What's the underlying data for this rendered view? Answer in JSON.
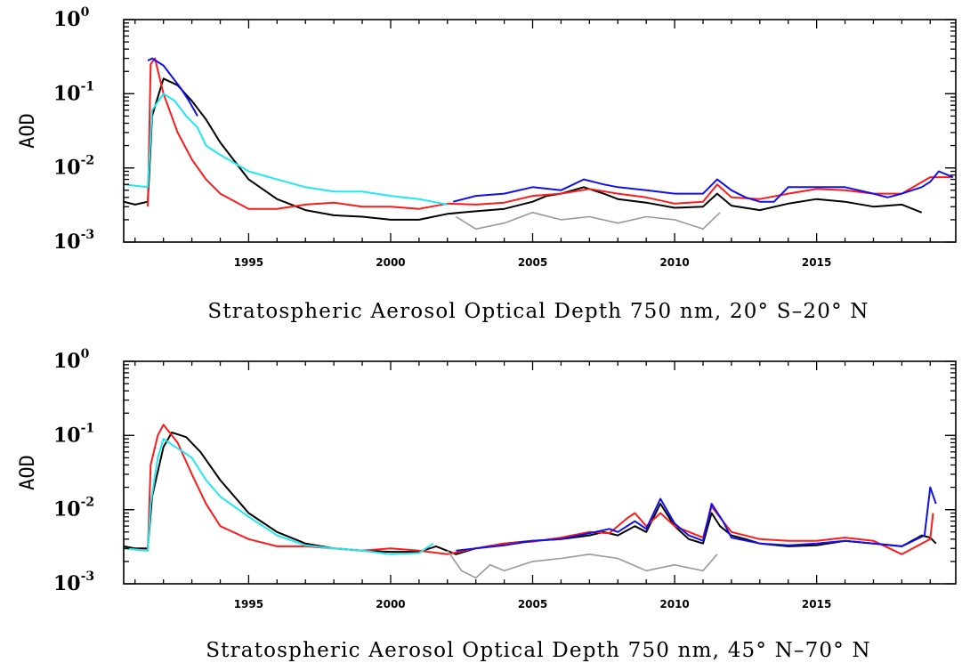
{
  "colors": {
    "black": "#000000",
    "red": "#ff1a1a",
    "cyan": "#1ee8f0",
    "blue": "#1010ee",
    "grey": "#999999"
  },
  "chart_data": [
    {
      "type": "line",
      "title": "Stratospheric Aerosol Optical Depth 750 nm, 20° S–20° N",
      "ylabel": "AOD",
      "xlabel": "",
      "yscale": "log",
      "ylim": [
        0.001,
        1
      ],
      "xlim": [
        1990.6,
        2019.9
      ],
      "xticks": [
        "1995",
        "2000",
        "2005",
        "2010",
        "2015"
      ],
      "yticks": [
        {
          "base": "10",
          "exp": "0"
        },
        {
          "base": "10",
          "exp": "-1"
        },
        {
          "base": "10",
          "exp": "-2"
        },
        {
          "base": "10",
          "exp": "-3"
        }
      ],
      "grid": false,
      "series": [
        {
          "color": "black",
          "x": [
            1990.6,
            1991.0,
            1991.45,
            1991.6,
            1992.0,
            1992.5,
            1993.0,
            1993.5,
            1994.0,
            1995.0,
            1996.0,
            1997.0,
            1998.0,
            1999.0,
            2000.0,
            2001.0,
            2002.0,
            2002.5,
            2003.0,
            2004.0,
            2005.0,
            2005.5,
            2006.0,
            2006.8,
            2007.5,
            2008.0,
            2009.0,
            2010.0,
            2011.0,
            2011.5,
            2012.0,
            2013.0,
            2014.0,
            2015.0,
            2016.0,
            2017.0,
            2018.0,
            2018.7
          ],
          "y": [
            0.0035,
            0.0032,
            0.0035,
            0.05,
            0.16,
            0.13,
            0.08,
            0.045,
            0.022,
            0.007,
            0.0038,
            0.0027,
            0.0023,
            0.0022,
            0.002,
            0.002,
            0.0024,
            0.0025,
            0.0026,
            0.0028,
            0.0035,
            0.0042,
            0.0045,
            0.0055,
            0.0045,
            0.0038,
            0.0034,
            0.0029,
            0.003,
            0.0045,
            0.0031,
            0.0027,
            0.0033,
            0.0038,
            0.0035,
            0.003,
            0.0032,
            0.0025
          ]
        },
        {
          "color": "red",
          "x": [
            1991.45,
            1991.55,
            1991.7,
            1992.0,
            1992.5,
            1993.0,
            1993.5,
            1994.0,
            1995.0,
            1996.0,
            1997.0,
            1998.0,
            1999.0,
            2000.0,
            2001.0,
            2002.0,
            2003.0,
            2004.0,
            2005.0,
            2006.0,
            2007.0,
            2008.0,
            2009.0,
            2010.0,
            2011.0,
            2011.5,
            2012.0,
            2013.0,
            2014.0,
            2015.0,
            2016.0,
            2017.0,
            2018.0,
            2019.0,
            2019.8
          ],
          "y": [
            0.003,
            0.25,
            0.3,
            0.1,
            0.03,
            0.013,
            0.007,
            0.0045,
            0.0028,
            0.0028,
            0.0032,
            0.0034,
            0.003,
            0.003,
            0.0028,
            0.0033,
            0.0032,
            0.0034,
            0.0042,
            0.0045,
            0.0052,
            0.0045,
            0.004,
            0.0033,
            0.0035,
            0.006,
            0.004,
            0.0038,
            0.0045,
            0.0052,
            0.005,
            0.0045,
            0.0045,
            0.0075,
            0.0075
          ]
        },
        {
          "color": "cyan",
          "x": [
            1990.6,
            1991.45,
            1991.6,
            1992.0,
            1992.4,
            1992.8,
            1993.2,
            1993.5,
            1994.0,
            1995.0,
            1996.0,
            1997.0,
            1998.0,
            1999.0,
            2000.0,
            2001.0,
            2002.0
          ],
          "y": [
            0.006,
            0.0055,
            0.06,
            0.1,
            0.08,
            0.05,
            0.035,
            0.02,
            0.015,
            0.009,
            0.007,
            0.0055,
            0.0048,
            0.0048,
            0.0042,
            0.0038,
            0.0032
          ]
        },
        {
          "color": "blue",
          "x": [
            2002.2,
            2003.0,
            2004.0,
            2005.0,
            2006.0,
            2006.8,
            2007.5,
            2008.0,
            2009.0,
            2010.0,
            2011.0,
            2011.5,
            2012.0,
            2012.5,
            2013.0,
            2013.5,
            2014.0,
            2015.0,
            2016.0,
            2017.0,
            2017.5,
            2018.0,
            2018.7,
            2019.0,
            2019.3,
            2019.8
          ],
          "y": [
            0.0035,
            0.0042,
            0.0045,
            0.0055,
            0.005,
            0.007,
            0.006,
            0.0055,
            0.005,
            0.0045,
            0.0045,
            0.007,
            0.005,
            0.004,
            0.0035,
            0.0035,
            0.0055,
            0.0055,
            0.0055,
            0.0045,
            0.004,
            0.0045,
            0.0055,
            0.0065,
            0.009,
            0.0075
          ]
        },
        {
          "color": "blue",
          "x": [
            1991.45,
            1991.6,
            1992.0,
            1992.3,
            1992.6,
            1992.9,
            1993.2
          ],
          "y": [
            0.28,
            0.3,
            0.24,
            0.17,
            0.12,
            0.08,
            0.05
          ]
        },
        {
          "color": "grey",
          "x": [
            2002.3,
            2003.0,
            2004.0,
            2005.0,
            2006.0,
            2007.0,
            2008.0,
            2009.0,
            2010.0,
            2011.0,
            2011.6
          ],
          "y": [
            0.0022,
            0.0015,
            0.0018,
            0.0025,
            0.002,
            0.0022,
            0.0018,
            0.0022,
            0.002,
            0.0015,
            0.0025
          ]
        }
      ]
    },
    {
      "type": "line",
      "title": "Stratospheric Aerosol Optical Depth 750 nm, 45° N–70° N",
      "ylabel": "AOD",
      "xlabel": "",
      "yscale": "log",
      "ylim": [
        0.001,
        1
      ],
      "xlim": [
        1990.6,
        2019.9
      ],
      "xticks": [
        "1995",
        "2000",
        "2005",
        "2010",
        "2015"
      ],
      "yticks": [
        {
          "base": "10",
          "exp": "0"
        },
        {
          "base": "10",
          "exp": "-1"
        },
        {
          "base": "10",
          "exp": "-2"
        },
        {
          "base": "10",
          "exp": "-3"
        }
      ],
      "grid": false,
      "series": [
        {
          "color": "black",
          "x": [
            1990.6,
            1991.0,
            1991.45,
            1991.6,
            1992.0,
            1992.3,
            1992.8,
            1993.3,
            1994.0,
            1995.0,
            1996.0,
            1997.0,
            1998.0,
            1999.0,
            2000.0,
            2001.0,
            2001.6,
            2002.3,
            2003.0,
            2004.0,
            2005.0,
            2006.0,
            2007.0,
            2007.5,
            2008.0,
            2008.6,
            2009.0,
            2009.5,
            2010.0,
            2010.5,
            2011.0,
            2011.3,
            2011.6,
            2012.0,
            2012.5,
            2013.0,
            2014.0,
            2015.0,
            2016.0,
            2017.0,
            2018.0,
            2018.7,
            2019.0,
            2019.2
          ],
          "y": [
            0.0032,
            0.003,
            0.003,
            0.015,
            0.07,
            0.11,
            0.095,
            0.06,
            0.025,
            0.009,
            0.005,
            0.0035,
            0.003,
            0.0028,
            0.0027,
            0.0027,
            0.0032,
            0.0025,
            0.003,
            0.0035,
            0.0038,
            0.004,
            0.0045,
            0.005,
            0.0045,
            0.006,
            0.005,
            0.012,
            0.006,
            0.004,
            0.0035,
            0.009,
            0.006,
            0.0045,
            0.004,
            0.0035,
            0.0032,
            0.0033,
            0.0038,
            0.0035,
            0.0032,
            0.0045,
            0.0042,
            0.0035
          ]
        },
        {
          "color": "red",
          "x": [
            1990.6,
            1991.45,
            1991.55,
            1991.8,
            1992.0,
            1992.5,
            1993.0,
            1993.5,
            1994.0,
            1995.0,
            1996.0,
            1997.0,
            1998.0,
            1999.0,
            2000.0,
            2001.0,
            2002.0,
            2003.0,
            2004.0,
            2005.0,
            2006.0,
            2007.0,
            2007.7,
            2008.3,
            2008.6,
            2009.0,
            2009.5,
            2010.0,
            2011.0,
            2011.3,
            2011.7,
            2012.0,
            2013.0,
            2014.0,
            2015.0,
            2016.0,
            2017.0,
            2018.0,
            2019.0,
            2019.1
          ],
          "y": [
            0.003,
            0.0028,
            0.04,
            0.1,
            0.14,
            0.08,
            0.03,
            0.012,
            0.006,
            0.004,
            0.0032,
            0.0032,
            0.003,
            0.0028,
            0.003,
            0.0028,
            0.0025,
            0.003,
            0.0035,
            0.0037,
            0.0042,
            0.005,
            0.0048,
            0.0075,
            0.009,
            0.006,
            0.009,
            0.006,
            0.0042,
            0.011,
            0.007,
            0.005,
            0.004,
            0.0038,
            0.0038,
            0.0042,
            0.0038,
            0.0025,
            0.004,
            0.009
          ]
        },
        {
          "color": "cyan",
          "x": [
            1990.6,
            1991.45,
            1991.55,
            1991.8,
            1992.0,
            1992.3,
            1992.7,
            1993.0,
            1993.5,
            1994.0,
            1995.0,
            1996.0,
            1997.0,
            1998.0,
            1999.0,
            2000.0,
            2001.0,
            2001.5
          ],
          "y": [
            0.003,
            0.0028,
            0.012,
            0.05,
            0.09,
            0.075,
            0.06,
            0.05,
            0.025,
            0.015,
            0.008,
            0.0045,
            0.0033,
            0.003,
            0.0028,
            0.0025,
            0.0026,
            0.0035
          ]
        },
        {
          "color": "blue",
          "x": [
            2002.3,
            2003.0,
            2004.0,
            2005.0,
            2006.0,
            2007.0,
            2007.7,
            2008.0,
            2008.6,
            2009.0,
            2009.5,
            2010.0,
            2010.5,
            2011.0,
            2011.3,
            2011.7,
            2012.0,
            2013.0,
            2014.0,
            2015.0,
            2016.0,
            2017.0,
            2018.0,
            2018.8,
            2019.0,
            2019.2
          ],
          "y": [
            0.0028,
            0.003,
            0.0033,
            0.0038,
            0.004,
            0.0048,
            0.0055,
            0.005,
            0.007,
            0.0055,
            0.014,
            0.0065,
            0.0045,
            0.0038,
            0.012,
            0.007,
            0.0042,
            0.0035,
            0.0033,
            0.0035,
            0.0038,
            0.0035,
            0.0032,
            0.0045,
            0.02,
            0.012
          ]
        },
        {
          "color": "grey",
          "x": [
            2002.0,
            2002.5,
            2003.0,
            2003.5,
            2004.0,
            2005.0,
            2006.0,
            2007.0,
            2008.0,
            2009.0,
            2010.0,
            2011.0,
            2011.5
          ],
          "y": [
            0.0028,
            0.0015,
            0.0012,
            0.0018,
            0.0015,
            0.002,
            0.0022,
            0.0025,
            0.0022,
            0.0015,
            0.0018,
            0.0015,
            0.0025
          ]
        }
      ]
    }
  ]
}
